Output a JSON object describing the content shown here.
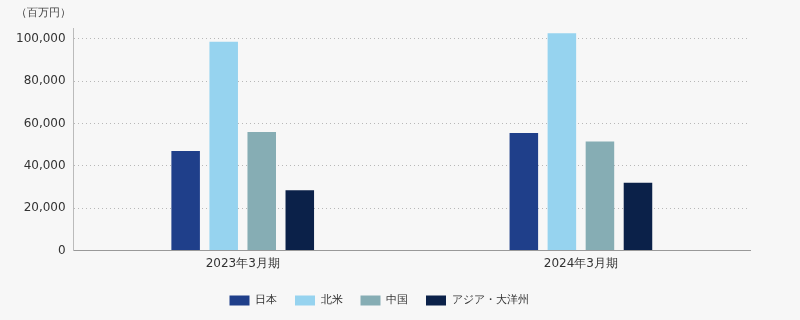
{
  "chart_data": {
    "type": "bar",
    "ylabel": "（百万円）",
    "categories": [
      "2023年3月期",
      "2024年3月期"
    ],
    "series": [
      {
        "name": "日本",
        "color": "#1f3f8a",
        "values": [
          47000,
          55500
        ]
      },
      {
        "name": "北米",
        "color": "#96d3ef",
        "values": [
          98500,
          102500
        ]
      },
      {
        "name": "中国",
        "color": "#86adb4",
        "values": [
          56000,
          51500
        ]
      },
      {
        "name": "アジア・大洋州",
        "color": "#0b2149",
        "values": [
          28500,
          32000
        ]
      }
    ],
    "ylim": [
      0,
      105000
    ],
    "yticks": [
      0,
      {
        "value": 20000,
        "label": "20,000"
      },
      {
        "value": 40000,
        "label": "40,000"
      },
      {
        "value": 60000,
        "label": "60,000"
      },
      {
        "value": 80000,
        "label": "80,000"
      },
      {
        "value": 100000,
        "label": "100,000"
      }
    ],
    "grid": true,
    "legend": "bottom"
  }
}
